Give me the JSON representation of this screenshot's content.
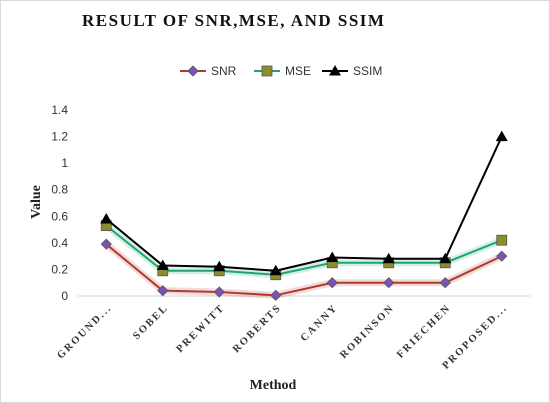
{
  "chart_data": {
    "type": "line",
    "title": "RESULT OF SNR,MSE, AND SSIM",
    "xlabel": "Method",
    "ylabel": "Value",
    "categories": [
      "GROUND...",
      "SOBEL",
      "PREWITT",
      "ROBERTS",
      "CANNY",
      "ROBINSON",
      "FRIECHEN",
      "PROPOSED..."
    ],
    "ylim": [
      0,
      1.4
    ],
    "yticks": [
      "0",
      "0.2",
      "0.4",
      "0.6",
      "0.8",
      "1",
      "1.2",
      "1.4"
    ],
    "grid": false,
    "legend_position": "top",
    "series": [
      {
        "name": "SNR",
        "color": "#b03a2e",
        "marker": "diamond",
        "marker_color": "#7b52b8",
        "values": [
          0.39,
          0.04,
          0.03,
          0.005,
          0.1,
          0.1,
          0.1,
          0.3
        ]
      },
      {
        "name": "MSE",
        "color": "#1ea672",
        "marker": "square",
        "marker_color": "#8a8f2a",
        "values": [
          0.53,
          0.19,
          0.19,
          0.16,
          0.25,
          0.25,
          0.25,
          0.42
        ]
      },
      {
        "name": "SSIM",
        "color": "#000000",
        "marker": "triangle",
        "marker_color": "#000000",
        "values": [
          0.58,
          0.23,
          0.22,
          0.19,
          0.29,
          0.28,
          0.28,
          1.2
        ]
      }
    ]
  }
}
